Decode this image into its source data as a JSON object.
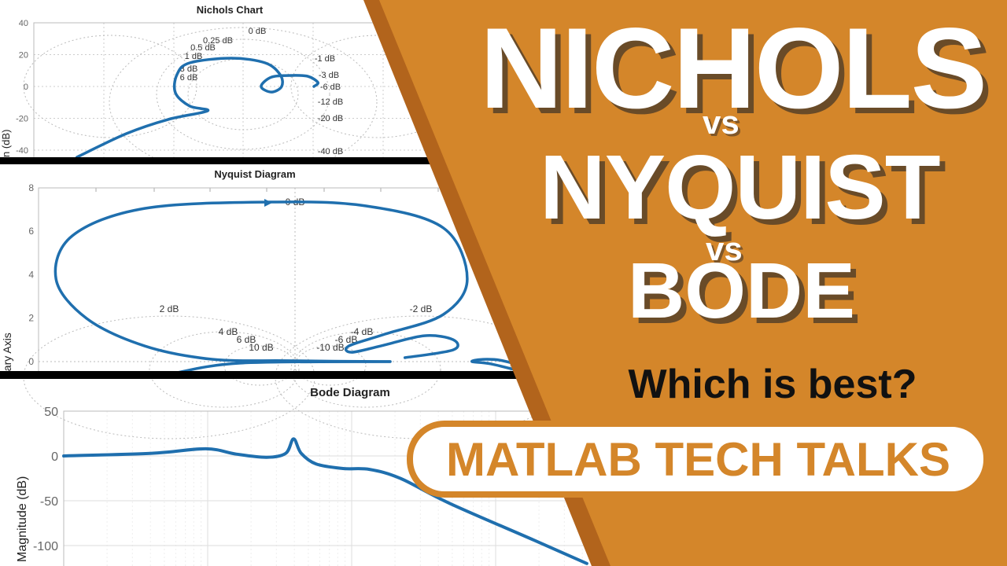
{
  "colors": {
    "orange": "#d4862a",
    "orange_edge": "#b2641c",
    "curve": "#1f6fae",
    "bar": "#000000"
  },
  "headline": {
    "line1": "NICHOLS",
    "vs1": "vs",
    "line2": "NYQUIST",
    "vs2": "vs",
    "line3": "BODE"
  },
  "question": "Which is best?",
  "badge": "MATLAB TECH TALKS",
  "chart_data": [
    {
      "type": "line",
      "title": "Nichols Chart",
      "ylabel": "n (dB)",
      "yticks": [
        40,
        20,
        0,
        -20,
        -40
      ],
      "ylim": [
        -45,
        40
      ],
      "grid": true,
      "grid_labels": [
        "0 dB",
        "0.25 dB",
        "0.5 dB",
        "1 dB",
        "3 dB",
        "6 dB",
        "-1 dB",
        "-3 dB",
        "-6 dB",
        "-12 dB",
        "-20 dB",
        "-40 dB"
      ],
      "series": [
        {
          "x": [
            -286.8,
            -254.9,
            -228.1,
            -202.8,
            -214.4,
            -223.5,
            -222.5,
            -214.4,
            -187.6,
            -165.8,
            -156.2,
            -155.2,
            -161.8,
            -168.4,
            -161.8,
            -149.6,
            -138.5,
            -131.9,
            -134.5
          ],
          "y": [
            -44.4,
            -29.6,
            -20.7,
            -15.3,
            -12.3,
            -4.0,
            7.4,
            14.8,
            17.8,
            14.8,
            7.4,
            0,
            -3.5,
            0,
            5.9,
            6.9,
            6.4,
            2.5,
            0
          ]
        }
      ]
    },
    {
      "type": "line",
      "title": "Nyquist Diagram",
      "ylabel": "nary Axis",
      "yticks": [
        8,
        6,
        4,
        2,
        0
      ],
      "ylim": [
        -0.5,
        8
      ],
      "grid": true,
      "grid_labels": [
        "0 dB",
        "2 dB",
        "-2 dB",
        "4 dB",
        "6 dB",
        "10 dB",
        "-10 dB",
        "-6 dB",
        "-4 dB"
      ],
      "series": [
        {
          "x": [
            2.86,
            -0.71,
            -3.43,
            -5.81,
            -7.86,
            -8.94,
            -8.36,
            -5.81,
            -1.39,
            2.01,
            4.74,
            5.58,
            4.74,
            2.69,
            1.4,
            1.5,
            2.53,
            4.06,
            5.08,
            5.08,
            3.38
          ],
          "y": [
            0,
            0.04,
            0.11,
            0.72,
            1.99,
            3.8,
            5.79,
            7.05,
            7.34,
            7.16,
            6.15,
            3.8,
            2.17,
            1.27,
            0.72,
            0.43,
            0.72,
            1.19,
            1.01,
            0.54,
            0.18
          ]
        },
        {
          "x": [
            -4.79,
            -2.42,
            2.86
          ],
          "y": [
            -0.54,
            -0.07,
            0
          ]
        },
        {
          "x": [
            7.97,
            6.8,
            6.1,
            5.75,
            6.4,
            7.5
          ],
          "y": [
            -0.36,
            0.05,
            0.1,
            0,
            -0.1,
            -0.45
          ]
        }
      ]
    },
    {
      "type": "line",
      "title": "Bode Diagram",
      "ylabel": "Magnitude (dB)",
      "yticks": [
        50,
        0,
        -50,
        -100
      ],
      "ylim": [
        -125,
        50
      ],
      "xscale": "log",
      "grid": true,
      "series": [
        {
          "x": [
            0.1,
            0.41,
            0.97,
            1.58,
            2.57,
            3.49,
            3.95,
            4.46,
            5.67,
            8.7,
            13.3,
            21.8,
            48,
            185,
            430
          ],
          "y": [
            0,
            3,
            8,
            2,
            -1.5,
            3,
            19,
            3,
            -9,
            -14,
            -15,
            -25,
            -53,
            -94,
            -120
          ]
        }
      ]
    }
  ]
}
